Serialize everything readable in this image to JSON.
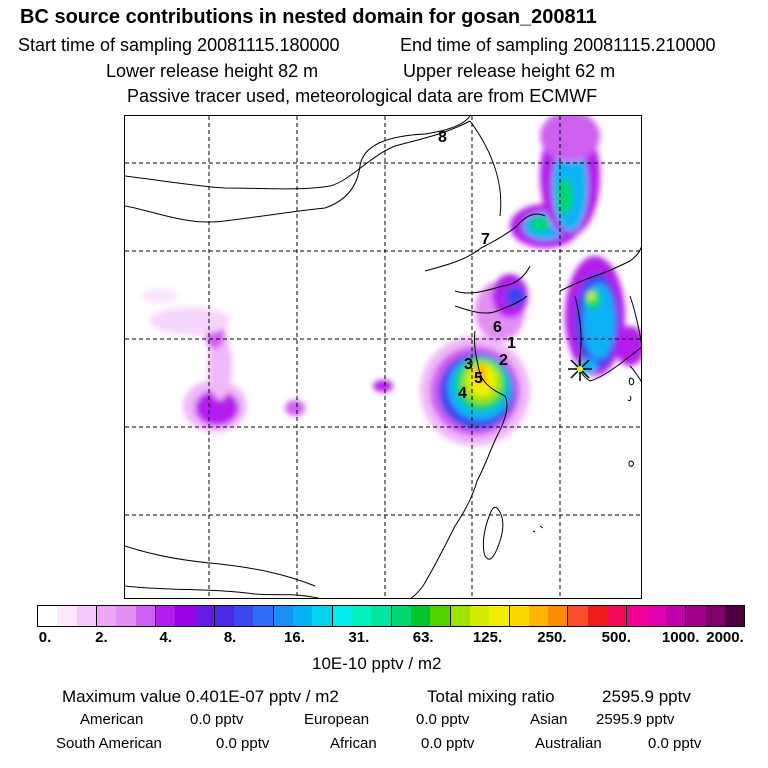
{
  "header": {
    "title": "BC  source contributions in nested domain for gosan_200811",
    "line1a": "Start time of sampling 20081115.180000",
    "line1b": "End time of sampling 20081115.210000",
    "line2a": "Lower release height   82 m",
    "line2b": "Upper release height   62 m",
    "line3": "Passive tracer used, meteorological data are from ECMWF"
  },
  "map": {
    "markers": [
      "1",
      "2",
      "3",
      "4",
      "5",
      "6",
      "7",
      "8"
    ],
    "receptor_icon": "star-receptor-icon"
  },
  "colorbar": {
    "colors": [
      "#ffffff",
      "#fde6fe",
      "#f7c9fb",
      "#efa6f7",
      "#e38ff2",
      "#cf5ff0",
      "#b51cee",
      "#9a00e8",
      "#6a18e6",
      "#4a2ae8",
      "#3a46f0",
      "#2f6cf4",
      "#1a90f4",
      "#07b2f6",
      "#00d6f2",
      "#00f0f0",
      "#00f0c0",
      "#00e6a0",
      "#00d670",
      "#00c62c",
      "#52d600",
      "#9ee400",
      "#d4ec00",
      "#f2f000",
      "#ffd800",
      "#ffb400",
      "#ff8c00",
      "#f84e2a",
      "#f01c1c",
      "#f20a5a",
      "#f00094",
      "#e000b4",
      "#c000a8",
      "#a0008c",
      "#80006e",
      "#500040"
    ],
    "labels": [
      "0.",
      "2.",
      "4.",
      "8.",
      "16.",
      "31.",
      "63.",
      "125.",
      "250.",
      "500.",
      "1000.",
      "2000."
    ],
    "unit": "10E-10 pptv / m2"
  },
  "stats": {
    "max_label": "Maximum value  0.401E-07 pptv / m2",
    "total_label": "Total mixing ratio",
    "total_value": "2595.9 pptv",
    "american_label": "American",
    "american_value": "0.0 pptv",
    "european_label": "European",
    "european_value": "0.0 pptv",
    "asian_label": "Asian",
    "asian_value": "2595.9 pptv",
    "south_american_label": "South American",
    "south_american_value": "0.0 pptv",
    "african_label": "African",
    "african_value": "0.0 pptv",
    "australian_label": "Australian",
    "australian_value": "0.0 pptv"
  }
}
